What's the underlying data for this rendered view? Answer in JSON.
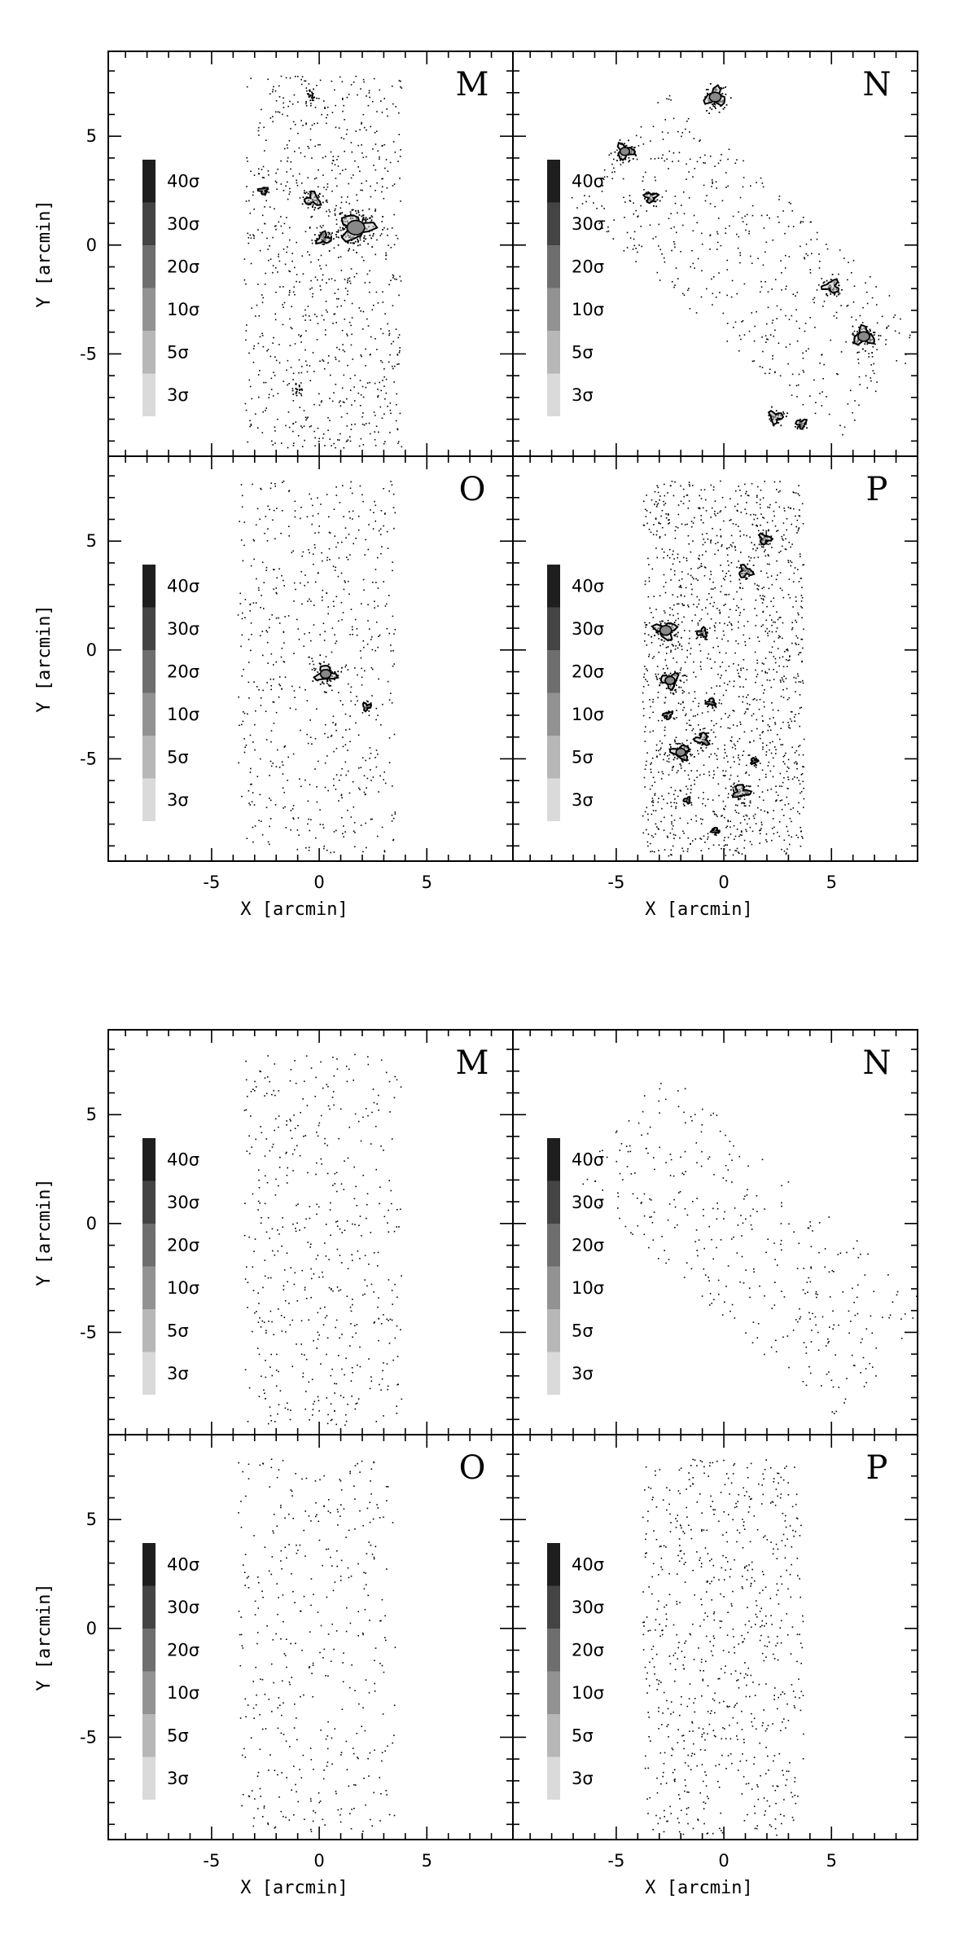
{
  "chart_data": {
    "type": "scatter",
    "xlabel": "X [arcmin]",
    "ylabel": "Y [arcmin]",
    "xlim": [
      -9.8,
      9.0
    ],
    "ylim": [
      -9.7,
      8.9
    ],
    "xticks": [
      "-5",
      "0",
      "5"
    ],
    "yticks": [
      "5",
      "0",
      "-5"
    ],
    "legend": {
      "placement": "left",
      "levels": [
        {
          "label": "40σ",
          "color": "#1e1e1e"
        },
        {
          "label": "30σ",
          "color": "#444444"
        },
        {
          "label": "20σ",
          "color": "#6e6e6e"
        },
        {
          "label": "10σ",
          "color": "#929292"
        },
        {
          "label": "5σ",
          "color": "#b7b7b7"
        },
        {
          "label": "3σ",
          "color": "#dadada"
        }
      ]
    },
    "figures": [
      {
        "panels": [
          {
            "label": "M",
            "field": {
              "shape": "rect",
              "x": [
                -3.5,
                3.8
              ],
              "y": [
                -9.3,
                7.8
              ]
            },
            "density": 0.95,
            "overdensities": [
              {
                "x": 1.7,
                "y": 0.8,
                "r": 0.9,
                "contoured": true
              },
              {
                "x": -0.3,
                "y": 2.1,
                "r": 0.45,
                "contoured": true
              },
              {
                "x": 0.2,
                "y": 0.3,
                "r": 0.4,
                "contoured": true
              },
              {
                "x": -2.6,
                "y": 2.5,
                "r": 0.25,
                "contoured": true
              },
              {
                "x": -0.4,
                "y": 6.9,
                "r": 0.3,
                "contoured": false
              },
              {
                "x": -1.0,
                "y": -6.6,
                "r": 0.25,
                "contoured": false
              }
            ]
          },
          {
            "label": "N",
            "field": {
              "shape": "band",
              "p1": [
                -5.0,
                4.6
              ],
              "p2": [
                7.5,
                -6.5
              ],
              "halfwidth": 3.4
            },
            "density": 0.65,
            "overdensities": [
              {
                "x": -0.4,
                "y": 6.8,
                "r": 0.6,
                "contoured": true
              },
              {
                "x": -4.6,
                "y": 4.3,
                "r": 0.5,
                "contoured": true
              },
              {
                "x": -3.4,
                "y": 2.2,
                "r": 0.35,
                "contoured": true
              },
              {
                "x": 5.0,
                "y": -1.9,
                "r": 0.45,
                "contoured": true
              },
              {
                "x": 6.5,
                "y": -4.2,
                "r": 0.6,
                "contoured": true
              },
              {
                "x": 2.4,
                "y": -7.9,
                "r": 0.4,
                "contoured": true
              },
              {
                "x": 3.6,
                "y": -8.2,
                "r": 0.3,
                "contoured": true
              }
            ]
          },
          {
            "label": "O",
            "field": {
              "shape": "rect",
              "x": [
                -3.8,
                3.5
              ],
              "y": [
                -9.3,
                7.8
              ]
            },
            "density": 0.7,
            "overdensities": [
              {
                "x": 0.3,
                "y": -1.1,
                "r": 0.55,
                "contoured": true
              },
              {
                "x": 2.2,
                "y": -2.6,
                "r": 0.25,
                "contoured": true
              }
            ]
          },
          {
            "label": "P",
            "field": {
              "shape": "rect",
              "x": [
                -3.8,
                3.7
              ],
              "y": [
                -9.5,
                7.8
              ]
            },
            "density": 1.6,
            "overdensities": [
              {
                "x": -2.7,
                "y": 0.9,
                "r": 0.6,
                "contoured": true
              },
              {
                "x": -2.5,
                "y": -1.4,
                "r": 0.5,
                "contoured": true
              },
              {
                "x": -2.0,
                "y": -4.7,
                "r": 0.5,
                "contoured": true
              },
              {
                "x": -1.0,
                "y": -4.1,
                "r": 0.4,
                "contoured": true
              },
              {
                "x": 0.8,
                "y": -6.5,
                "r": 0.45,
                "contoured": true
              },
              {
                "x": 1.0,
                "y": 3.6,
                "r": 0.4,
                "contoured": true
              },
              {
                "x": 1.9,
                "y": 5.1,
                "r": 0.35,
                "contoured": true
              },
              {
                "x": -1.0,
                "y": 0.8,
                "r": 0.3,
                "contoured": true
              },
              {
                "x": -0.6,
                "y": -2.4,
                "r": 0.25,
                "contoured": true
              },
              {
                "x": -2.6,
                "y": -3.0,
                "r": 0.25,
                "contoured": true
              },
              {
                "x": -1.7,
                "y": -6.9,
                "r": 0.2,
                "contoured": true
              },
              {
                "x": -0.4,
                "y": -8.3,
                "r": 0.2,
                "contoured": true
              },
              {
                "x": 1.4,
                "y": -5.1,
                "r": 0.2,
                "contoured": true
              }
            ]
          }
        ]
      },
      {
        "panels": [
          {
            "label": "M",
            "field": {
              "shape": "rect",
              "x": [
                -3.5,
                3.8
              ],
              "y": [
                -9.3,
                7.8
              ]
            },
            "density": 0.55,
            "overdensities": []
          },
          {
            "label": "N",
            "field": {
              "shape": "band",
              "p1": [
                -5.0,
                4.6
              ],
              "p2": [
                7.5,
                -6.5
              ],
              "halfwidth": 3.4
            },
            "density": 0.45,
            "overdensities": []
          },
          {
            "label": "O",
            "field": {
              "shape": "rect",
              "x": [
                -3.8,
                3.5
              ],
              "y": [
                -9.3,
                7.8
              ]
            },
            "density": 0.45,
            "overdensities": []
          },
          {
            "label": "P",
            "field": {
              "shape": "rect",
              "x": [
                -3.8,
                3.7
              ],
              "y": [
                -9.5,
                7.8
              ]
            },
            "density": 0.8,
            "overdensities": []
          }
        ]
      }
    ]
  }
}
